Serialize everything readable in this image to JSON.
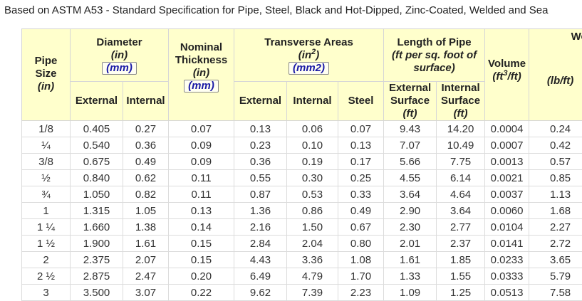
{
  "caption": "Based on ASTM A53 - Standard Specification for Pipe, Steel, Black and Hot-Dipped, Zinc-Coated, Welded and Sea",
  "headers": {
    "pipe_size": "Pipe Size",
    "pipe_size_unit": "(in)",
    "diameter": "Diameter",
    "diameter_unit": "(in)",
    "diameter_mm": "(mm)",
    "external": "External",
    "internal": "Internal",
    "nominal_thickness": "Nominal Thickness",
    "thickness_unit": "(in)",
    "thickness_mm": "(mm)",
    "transverse_areas": "Transverse Areas",
    "areas_unit_base": "(in",
    "areas_unit_exp": "2",
    "areas_unit_close": ")",
    "areas_mm": "(mm2)",
    "steel": "Steel",
    "length_of_pipe": "Length of Pipe",
    "length_unit": "(ft per sq. foot of surface)",
    "external_surface": "External Surface",
    "internal_surface": "Internal Surface",
    "surface_unit": "(ft)",
    "volume": "Volume",
    "volume_unit_base": "(ft",
    "volume_unit_exp": "3",
    "volume_unit_close": "/ft)",
    "weight": "Wei",
    "weight_unit": "(lb/ft)"
  },
  "rows": [
    [
      "1/8",
      "0.405",
      "0.27",
      "0.07",
      "0.13",
      "0.06",
      "0.07",
      "9.43",
      "14.20",
      "0.0004",
      "0.24"
    ],
    [
      "¼",
      "0.540",
      "0.36",
      "0.09",
      "0.23",
      "0.10",
      "0.13",
      "7.07",
      "10.49",
      "0.0007",
      "0.42"
    ],
    [
      "3/8",
      "0.675",
      "0.49",
      "0.09",
      "0.36",
      "0.19",
      "0.17",
      "5.66",
      "7.75",
      "0.0013",
      "0.57"
    ],
    [
      "½",
      "0.840",
      "0.62",
      "0.11",
      "0.55",
      "0.30",
      "0.25",
      "4.55",
      "6.14",
      "0.0021",
      "0.85"
    ],
    [
      "¾",
      "1.050",
      "0.82",
      "0.11",
      "0.87",
      "0.53",
      "0.33",
      "3.64",
      "4.64",
      "0.0037",
      "1.13"
    ],
    [
      "1",
      "1.315",
      "1.05",
      "0.13",
      "1.36",
      "0.86",
      "0.49",
      "2.90",
      "3.64",
      "0.0060",
      "1.68"
    ],
    [
      "1 ¼",
      "1.660",
      "1.38",
      "0.14",
      "2.16",
      "1.50",
      "0.67",
      "2.30",
      "2.77",
      "0.0104",
      "2.27"
    ],
    [
      "1 ½",
      "1.900",
      "1.61",
      "0.15",
      "2.84",
      "2.04",
      "0.80",
      "2.01",
      "2.37",
      "0.0141",
      "2.72"
    ],
    [
      "2",
      "2.375",
      "2.07",
      "0.15",
      "4.43",
      "3.36",
      "1.08",
      "1.61",
      "1.85",
      "0.0233",
      "3.65"
    ],
    [
      "2 ½",
      "2.875",
      "2.47",
      "0.20",
      "6.49",
      "4.79",
      "1.70",
      "1.33",
      "1.55",
      "0.0333",
      "5.79"
    ],
    [
      "3",
      "3.500",
      "3.07",
      "0.22",
      "9.62",
      "7.39",
      "2.23",
      "1.09",
      "1.25",
      "0.0513",
      "7.58"
    ]
  ],
  "colors": {
    "header_bg": "#ffffcc",
    "mm_text": "#1a1aa6"
  }
}
